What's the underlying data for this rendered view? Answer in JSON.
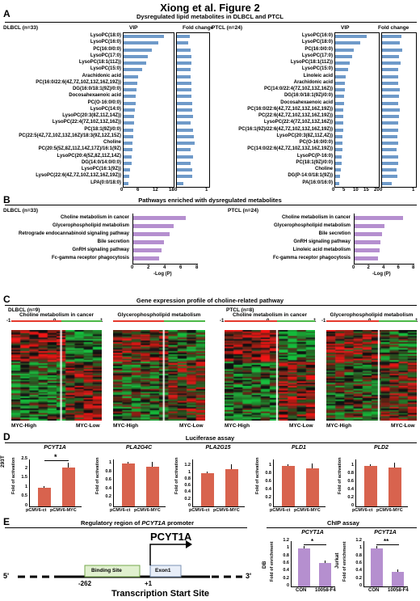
{
  "header": "Xiong et al.   Figure 2",
  "colors": {
    "bar_blue": "#6f9ac9",
    "bar_purple": "#b58fcf",
    "heat_red": "#e8262b",
    "heat_green": "#4cb848",
    "heat_black": "#111111",
    "lum_bar": "#d8634e",
    "line_red": "#e53a2d",
    "line_green": "#4cb848"
  },
  "panelA": {
    "letter": "A",
    "title": "Dysregulated lipid metabolites in DLBCL and PTCL",
    "dlbcl": {
      "label": "DLBCL (n=33)",
      "vip_label": "VIP",
      "fc_label": "Fold change",
      "metabolites": [
        "LysoPC(18:0)",
        "LysoPC(16:0)",
        "PC(16:0/0:0)",
        "LysoPC(17:0)",
        "LysoPC(18:1(11Z))",
        "LysoPC(15:0)",
        "Arachidonic acid",
        "PC(16:0/22:6(4Z,7Z,10Z,13Z,16Z,19Z))",
        "DG(16:0/18:1(9Z)/0:0)",
        "Docosahexaenoic acid",
        "PC(O-16:0/0:0)",
        "LysoPC(14:0)",
        "LysoPC(20:3(8Z,11Z,14Z))",
        "LysoPC(22:4(7Z,10Z,13Z,16Z))",
        "PC(18:1(9Z)/0:0)",
        "PC(22:5(4Z,7Z,10Z,13Z,16Z)/18:3(9Z,12Z,15Z)",
        "Choline",
        "PC(20:5(5Z,8Z,11Z,14Z,17Z)/16:1(9Z)",
        "LysoPC(20:4(5Z,8Z,11Z,14Z)",
        "DG(14:0/14:0/0:0)",
        "LysoPC(16:1(9Z))",
        "LysoPC(22:6(4Z,7Z,10Z,13Z,16Z,19Z))",
        "LPA(0:0/18:0)"
      ],
      "vip": [
        15,
        13,
        10.5,
        9,
        8.5,
        7,
        5.5,
        5,
        4.8,
        4.5,
        4.5,
        4.3,
        4,
        3.8,
        3.7,
        3.5,
        3.4,
        3.3,
        3.1,
        2.9,
        2.5,
        2.2,
        1.8
      ],
      "fc": [
        0.42,
        0.38,
        0.44,
        0.47,
        0.47,
        0.46,
        0.46,
        0.48,
        0.47,
        0.47,
        0.5,
        0.5,
        0.52,
        0.45,
        0.52,
        0.55,
        0.57,
        0.46,
        0.52,
        0.45,
        0.5,
        0.5,
        0.2
      ],
      "vip_ticks": [
        "0",
        "6",
        "12",
        "18"
      ],
      "vip_max": 18,
      "fc_ticks": [
        "0",
        "1"
      ],
      "fc_max": 1
    },
    "ptcl": {
      "label": "PTCL (n=24)",
      "vip_label": "VIP",
      "fc_label": "Fold change",
      "metabolites": [
        "LysoPC(16:0)",
        "LysoPC(18:0)",
        "PC(16:0/0:0)",
        "LysoPC(17:0)",
        "LysoPC(18:1(11Z))",
        "LysoPC(15:0)",
        "Linoleic acid",
        "Arachidonic acid",
        "PC(14:0/22:4(7Z,10Z,13Z,16Z))",
        "DG(16:0/18:1(9Z)/0:0)",
        "Docosahexaenoic acid",
        "PC(16:0/22:6(4Z,7Z,10Z,13Z,16Z,19Z))",
        "PC(22:6(4Z,7Z,10Z,13Z,16Z,19Z))",
        "LysoPC(22:4(7Z,10Z,13Z,16Z))",
        "PC(16:1(9Z)/22:6(4Z,7Z,10Z,13Z,16Z,19Z))",
        "LysoPC(20:3(8Z,11Z,4Z))",
        "PC(O-16:0/0:0)",
        "PC(14:0/22:6(4Z,7Z,10Z,13Z,16Z,19Z))",
        "LysoPC(P-16:0)",
        "PC(18:1(9Z)/0:0)",
        "Choline",
        "DG(P-14:0/18:1(9Z))",
        "PA(16:0/16:0)"
      ],
      "vip": [
        15,
        12,
        9,
        8,
        7,
        6,
        5,
        4.8,
        4.5,
        4.3,
        4.2,
        4,
        4,
        3.8,
        3.7,
        3.5,
        3.4,
        3.3,
        3,
        2.9,
        2.7,
        2.4,
        2
      ],
      "fc": [
        0.6,
        0.55,
        0.62,
        0.52,
        0.58,
        0.5,
        0.5,
        0.5,
        0.55,
        0.52,
        0.5,
        0.55,
        0.52,
        0.5,
        0.5,
        0.48,
        0.5,
        0.45,
        0.5,
        0.5,
        0.45,
        0.48,
        0.3
      ],
      "vip_ticks": [
        "0",
        "5",
        "10",
        "15",
        "20"
      ],
      "vip_max": 20,
      "fc_ticks": [
        "0",
        "1"
      ],
      "fc_max": 1
    }
  },
  "panelB": {
    "letter": "B",
    "title": "Pathways enriched with dysregulated metabolites",
    "dlbcl": {
      "label": "DLBCL (n=33)",
      "pathways": [
        "Choline metabolism in cancer",
        "Glycerophospholipid metabolism",
        "Retrograde endocannabinoid signaling pathway",
        "Bile secretion",
        "GnRH signaling pathway",
        "Fc-gamma receptor phagocytosis"
      ],
      "values": [
        6.5,
        5,
        4.5,
        3.8,
        3.5,
        3.2
      ],
      "ticks": [
        "0",
        "2",
        "4",
        "6",
        "8"
      ],
      "axis_label": "-Log (P)",
      "max": 8
    },
    "ptcl": {
      "label": "PTCL (n=24)",
      "pathways": [
        "Choline metabolism in cancer",
        "Glycerophospholipid metabolism",
        "Bile secretion",
        "GnRH signaling pathway",
        "Linoleic acid metabolism",
        "Fc-gamma receptor phagocytosis"
      ],
      "values": [
        6.5,
        4,
        3.7,
        3.5,
        3.3,
        3.1
      ],
      "ticks": [
        "0",
        "2",
        "4",
        "6",
        "8"
      ],
      "axis_label": "-Log (P)",
      "max": 8
    }
  },
  "panelC": {
    "letter": "C",
    "title": "Gene expression profile of choline-related pathway",
    "dlbcl_label": "DLBCL (n=9)",
    "ptcl_label": "PTCL (n=8)",
    "heatmaps": [
      {
        "title": "Choline metabolism in cancer",
        "scale": [
          "-1",
          "0",
          "1"
        ],
        "groups": [
          "MYC-High",
          "MYC-Low"
        ]
      },
      {
        "title": "Glycerophospholipid metabolism",
        "groups": [
          "MYC-High",
          "MYC-Low"
        ]
      },
      {
        "title": "Choline metabolism in cancer",
        "scale": [
          "-1",
          "0",
          "1"
        ],
        "groups": [
          "MYC-High",
          "MYC-Low"
        ]
      },
      {
        "title": "Glycerophospholipid metabolism",
        "scale": [
          "-1",
          "0",
          "1"
        ],
        "groups": [
          "MYC-High",
          "MYC-Low"
        ]
      }
    ]
  },
  "panelD": {
    "letter": "D",
    "title": "Luciferase assay",
    "cell_line": "293T",
    "ylabel": "Fold of activation",
    "genes": [
      {
        "name": "PCYT1A",
        "values": [
          1,
          2.05
        ],
        "yticks": [
          "0",
          "0.5",
          "1",
          "1.5",
          "2",
          "2.5"
        ],
        "ymax": 2.5,
        "sig": "*"
      },
      {
        "name": "PLA2G4C",
        "values": [
          1,
          0.93
        ],
        "yticks": [
          "0",
          "0.2",
          "0.4",
          "0.6",
          "0.8",
          "1"
        ],
        "ymax": 1.1
      },
      {
        "name": "PLA2G15",
        "values": [
          1,
          1.12
        ],
        "yticks": [
          "0",
          "0.2",
          "0.4",
          "0.6",
          "0.8",
          "1",
          "1.2"
        ],
        "ymax": 1.4
      },
      {
        "name": "PLD1",
        "values": [
          1,
          0.93
        ],
        "yticks": [
          "0",
          "0.2",
          "0.4",
          "0.6",
          "0.8",
          "1"
        ],
        "ymax": 1.15
      },
      {
        "name": "PLD2",
        "values": [
          1,
          0.96
        ],
        "yticks": [
          "0",
          "0.2",
          "0.4",
          "0.6",
          "0.8",
          "1"
        ],
        "ymax": 1.15
      }
    ],
    "xlabels": [
      "pCMV6-ct",
      "pCMV6-MYC"
    ]
  },
  "panelE": {
    "letter": "E",
    "title_prefix": "Regulatory region of ",
    "title_gene": "PCYT1A",
    "title_suffix": " promoter",
    "gene_label": "PCYT1A",
    "binding": "Binding Site",
    "exon": "Exon1",
    "five": "5'",
    "three": "3'",
    "pos_binding": "-262",
    "pos_tss": "+1",
    "tss": "Transcription Start Site",
    "chip_title": "ChIP assay",
    "chip_ylabel": "Fold of enrichment",
    "chip": [
      {
        "gene": "PCYT1A",
        "cell": "DB",
        "values": [
          1,
          0.62
        ],
        "sig": "*"
      },
      {
        "gene": "PCYT1A",
        "cell": "Jurkat",
        "values": [
          1,
          0.38
        ],
        "sig": "**"
      }
    ],
    "chip_yticks": [
      "0",
      "0.2",
      "0.4",
      "0.6",
      "0.8",
      "1",
      "1.2"
    ],
    "chip_xlabels": [
      "CON",
      "10058-F4"
    ]
  }
}
